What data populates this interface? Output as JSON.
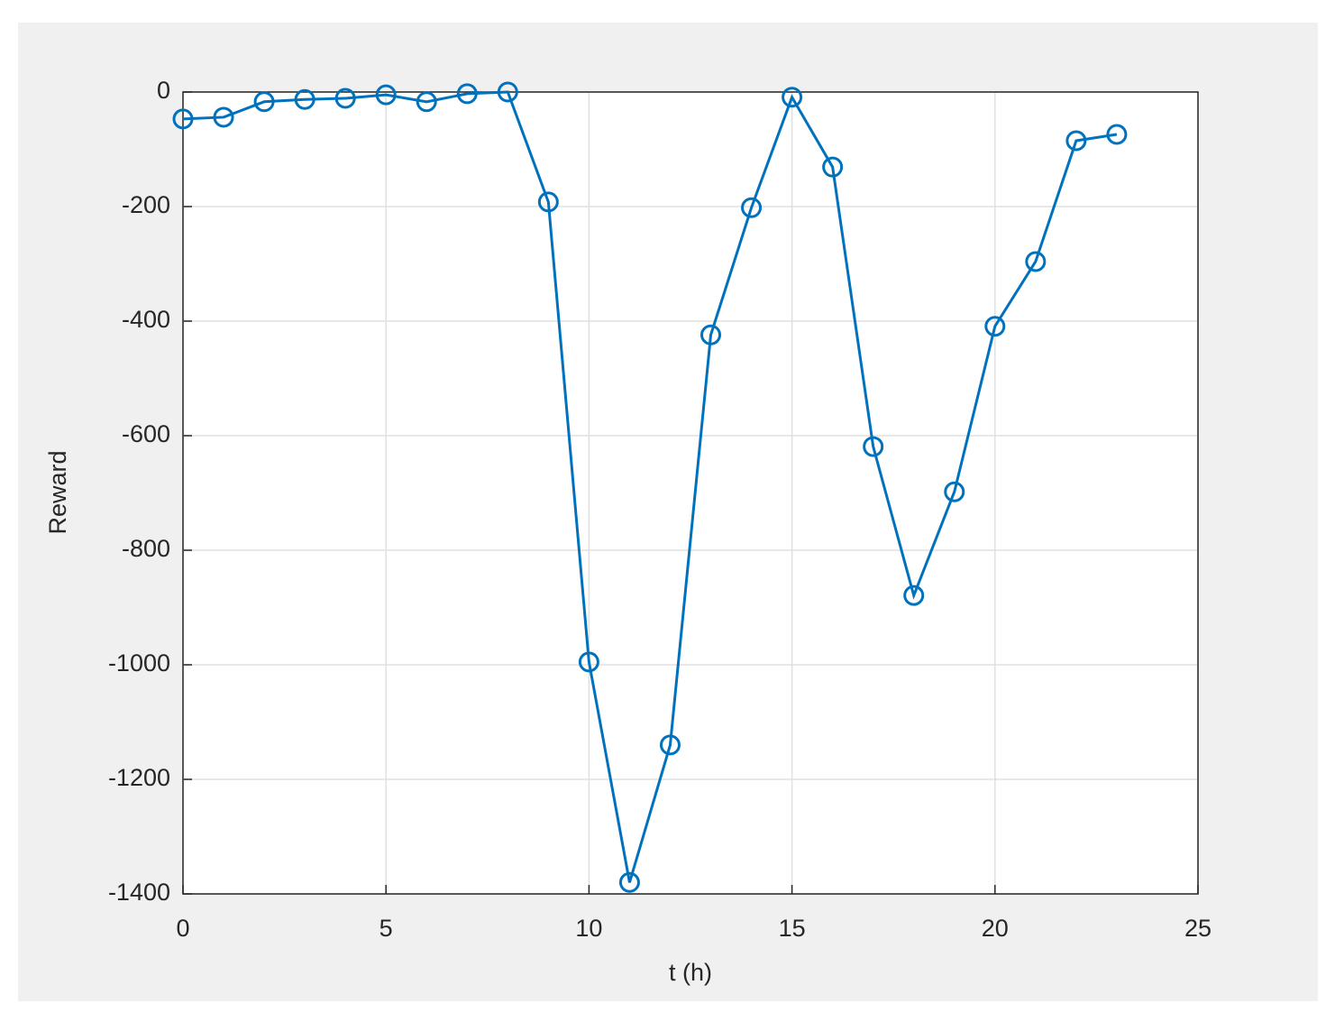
{
  "chart_data": {
    "type": "line",
    "x_label": "t (h)",
    "y_label": "Reward",
    "x": [
      0,
      1,
      2,
      3,
      4,
      5,
      6,
      7,
      8,
      9,
      10,
      11,
      12,
      13,
      14,
      15,
      16,
      17,
      18,
      19,
      20,
      21,
      22,
      23
    ],
    "series": [
      {
        "color": "#0072bd",
        "marker": "circle",
        "values": [
          -47,
          -44,
          -17,
          -13,
          -11,
          -5,
          -17,
          -3,
          0,
          -192,
          -995,
          -1380,
          -1140,
          -424,
          -202,
          -9,
          -131,
          -619,
          -879,
          -698,
          -409,
          -296,
          -85,
          -74
        ]
      }
    ],
    "xlim": [
      0,
      25
    ],
    "xticks": [
      0,
      5,
      10,
      15,
      20,
      25
    ],
    "ylim": [
      -1400,
      0
    ],
    "yticks": [
      -1400,
      -1200,
      -1000,
      -800,
      -600,
      -400,
      -200,
      0
    ],
    "grid": true
  }
}
